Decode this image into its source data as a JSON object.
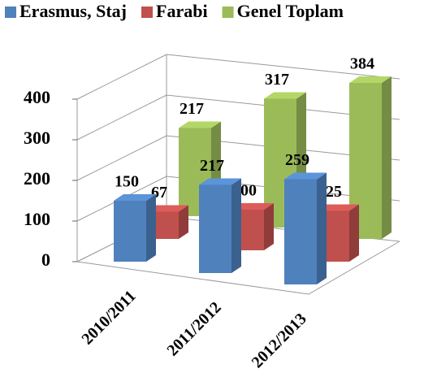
{
  "chart_data": {
    "type": "bar",
    "categories": [
      "2010/2011",
      "2011/2012",
      "2012/2013"
    ],
    "series": [
      {
        "name": "Erasmus, Staj",
        "color": "#4f81bd",
        "values": [
          150,
          217,
          259
        ]
      },
      {
        "name": "Farabi",
        "color": "#c0504d",
        "values": [
          67,
          100,
          125
        ]
      },
      {
        "name": "Genel Toplam",
        "color": "#9bbb59",
        "values": [
          217,
          317,
          384
        ]
      }
    ],
    "ylim": [
      0,
      400
    ],
    "yticks": [
      0,
      100,
      200,
      300,
      400
    ],
    "grid": true
  }
}
